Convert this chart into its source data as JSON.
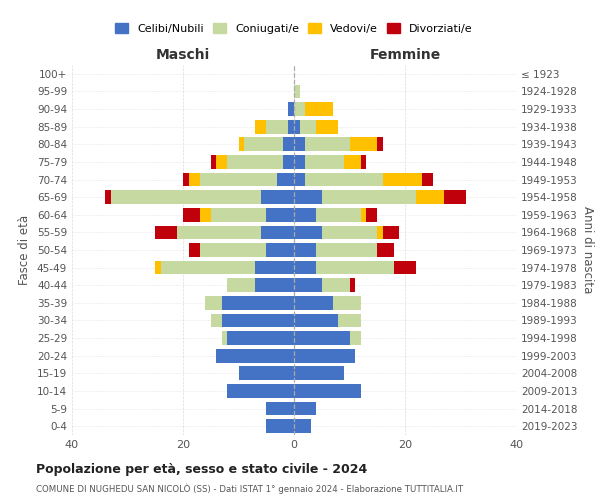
{
  "age_groups": [
    "0-4",
    "5-9",
    "10-14",
    "15-19",
    "20-24",
    "25-29",
    "30-34",
    "35-39",
    "40-44",
    "45-49",
    "50-54",
    "55-59",
    "60-64",
    "65-69",
    "70-74",
    "75-79",
    "80-84",
    "85-89",
    "90-94",
    "95-99",
    "100+"
  ],
  "birth_years": [
    "2019-2023",
    "2014-2018",
    "2009-2013",
    "2004-2008",
    "1999-2003",
    "1994-1998",
    "1989-1993",
    "1984-1988",
    "1979-1983",
    "1974-1978",
    "1969-1973",
    "1964-1968",
    "1959-1963",
    "1954-1958",
    "1949-1953",
    "1944-1948",
    "1939-1943",
    "1934-1938",
    "1929-1933",
    "1924-1928",
    "≤ 1923"
  ],
  "males": {
    "celibi": [
      5,
      5,
      12,
      10,
      14,
      12,
      13,
      13,
      7,
      7,
      5,
      6,
      5,
      6,
      3,
      2,
      2,
      1,
      1,
      0,
      0
    ],
    "coniugati": [
      0,
      0,
      0,
      0,
      0,
      1,
      2,
      3,
      5,
      17,
      12,
      15,
      10,
      27,
      14,
      10,
      7,
      4,
      0,
      0,
      0
    ],
    "vedovi": [
      0,
      0,
      0,
      0,
      0,
      0,
      0,
      0,
      0,
      1,
      0,
      0,
      2,
      0,
      2,
      2,
      1,
      2,
      0,
      0,
      0
    ],
    "divorziati": [
      0,
      0,
      0,
      0,
      0,
      0,
      0,
      0,
      0,
      0,
      2,
      4,
      3,
      1,
      1,
      1,
      0,
      0,
      0,
      0,
      0
    ]
  },
  "females": {
    "nubili": [
      3,
      4,
      12,
      9,
      11,
      10,
      8,
      7,
      5,
      4,
      4,
      5,
      4,
      5,
      2,
      2,
      2,
      1,
      0,
      0,
      0
    ],
    "coniugate": [
      0,
      0,
      0,
      0,
      0,
      2,
      4,
      5,
      5,
      14,
      11,
      10,
      8,
      17,
      14,
      7,
      8,
      3,
      2,
      1,
      0
    ],
    "vedove": [
      0,
      0,
      0,
      0,
      0,
      0,
      0,
      0,
      0,
      0,
      0,
      1,
      1,
      5,
      7,
      3,
      5,
      4,
      5,
      0,
      0
    ],
    "divorziate": [
      0,
      0,
      0,
      0,
      0,
      0,
      0,
      0,
      1,
      4,
      3,
      3,
      2,
      4,
      2,
      1,
      1,
      0,
      0,
      0,
      0
    ]
  },
  "colors": {
    "celibi": "#4472c4",
    "coniugati": "#c5d9a0",
    "vedovi": "#ffc000",
    "divorziati": "#c0000b"
  },
  "title": "Popolazione per età, sesso e stato civile - 2024",
  "subtitle": "COMUNE DI NUGHEDU SAN NICOLÒ (SS) - Dati ISTAT 1° gennaio 2024 - Elaborazione TUTTITALIA.IT",
  "xlabel_left": "Maschi",
  "xlabel_right": "Femmine",
  "ylabel_left": "Fasce di età",
  "ylabel_right": "Anni di nascita",
  "xlim": 40,
  "background_color": "#ffffff",
  "grid_color": "#cccccc"
}
